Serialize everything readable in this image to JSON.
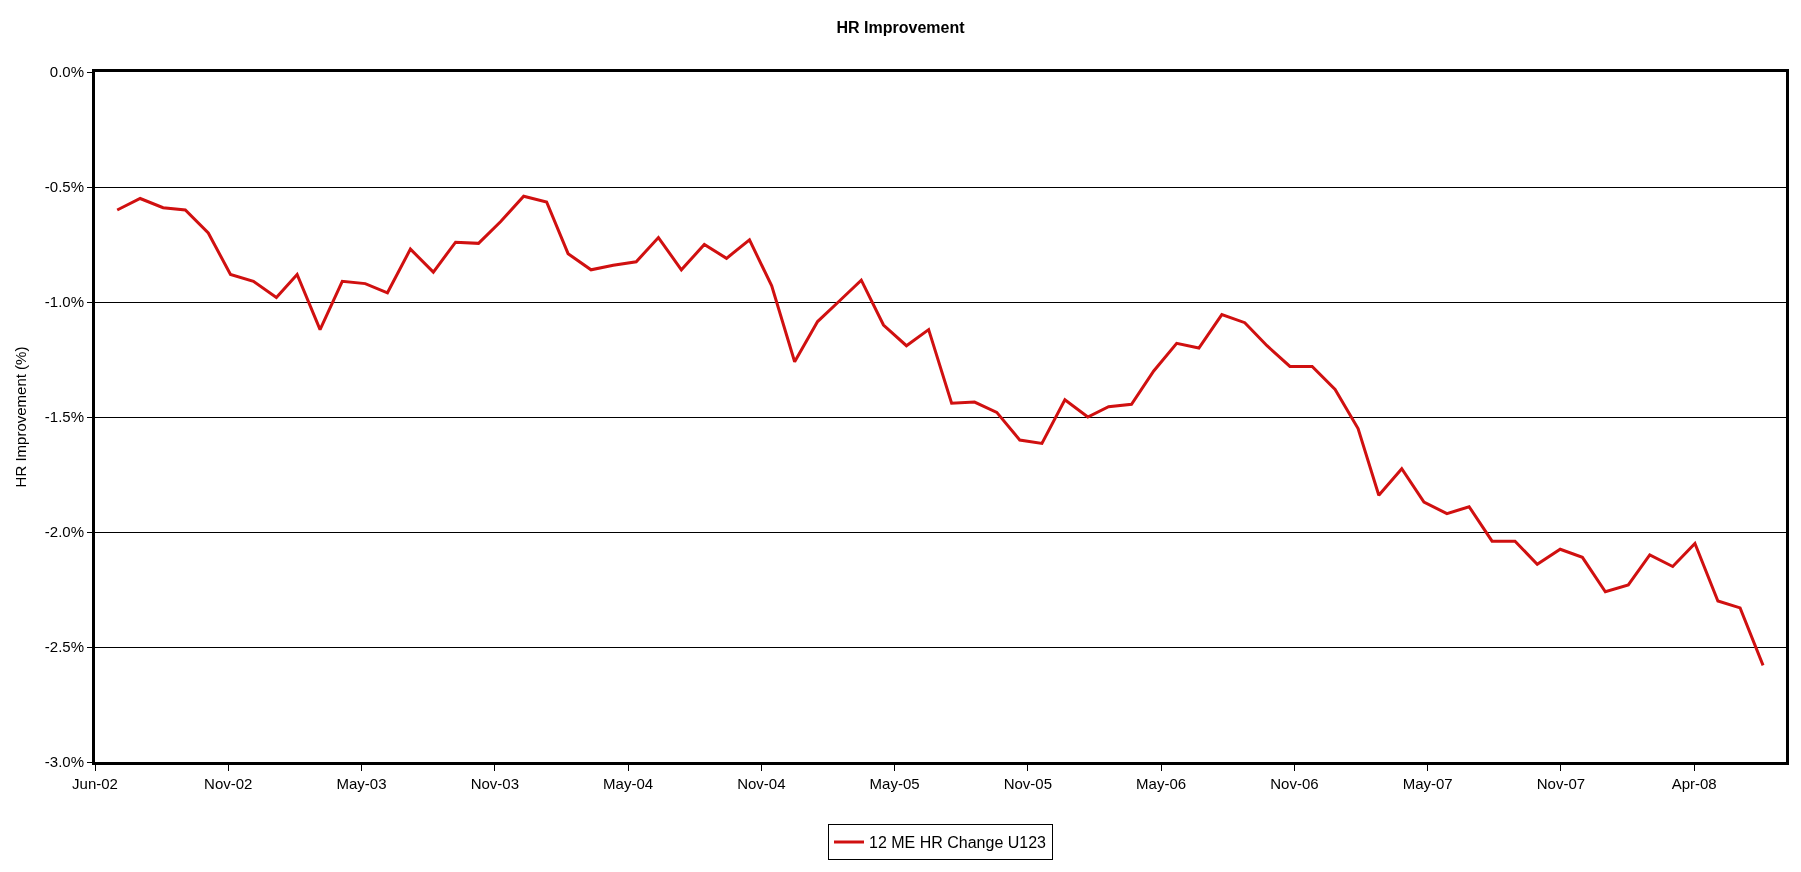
{
  "chart_data": {
    "type": "line",
    "title": "HR Improvement",
    "ylabel": "HR Improvement (%)",
    "x": [
      "2002-07",
      "2002-08",
      "2002-09",
      "2002-10",
      "2002-11",
      "2002-12",
      "2003-01",
      "2003-02",
      "2003-03",
      "2003-04",
      "2003-05",
      "2003-06",
      "2003-07",
      "2003-08",
      "2003-09",
      "2003-10",
      "2003-11",
      "2003-12",
      "2004-01",
      "2004-02",
      "2004-03",
      "2004-04",
      "2004-05",
      "2004-06",
      "2004-07",
      "2004-08",
      "2004-09",
      "2004-10",
      "2004-11",
      "2004-12",
      "2005-01",
      "2005-02",
      "2005-03",
      "2005-04",
      "2005-05",
      "2005-06",
      "2005-07",
      "2005-08",
      "2005-09",
      "2005-10",
      "2005-11",
      "2005-12",
      "2006-01",
      "2006-02",
      "2006-03",
      "2006-04",
      "2006-05",
      "2006-06",
      "2006-07",
      "2006-08",
      "2006-09",
      "2006-10",
      "2006-11",
      "2006-12",
      "2007-01",
      "2007-02",
      "2007-03",
      "2007-04",
      "2007-05",
      "2007-06",
      "2007-07",
      "2007-08",
      "2007-09",
      "2007-10",
      "2007-11",
      "2007-12",
      "2008-01",
      "2008-02",
      "2008-03",
      "2008-04",
      "2008-05",
      "2008-06",
      "2008-07",
      "2008-08"
    ],
    "series": [
      {
        "name": "12 ME HR Change U123",
        "color": "#d01010",
        "values": [
          -0.6,
          -0.55,
          -0.59,
          -0.6,
          -0.7,
          -0.88,
          -0.91,
          -0.98,
          -0.88,
          -1.12,
          -0.91,
          -0.92,
          -0.96,
          -0.77,
          -0.87,
          -0.74,
          -0.745,
          -0.65,
          -0.54,
          -0.565,
          -0.79,
          -0.86,
          -0.84,
          -0.825,
          -0.72,
          -0.86,
          -0.75,
          -0.81,
          -0.73,
          -0.93,
          -1.26,
          -1.085,
          -1.0,
          -0.905,
          -1.1,
          -1.19,
          -1.12,
          -1.44,
          -1.435,
          -1.48,
          -1.6,
          -1.615,
          -1.425,
          -1.5,
          -1.455,
          -1.445,
          -1.3,
          -1.18,
          -1.2,
          -1.055,
          -1.09,
          -1.19,
          -1.28,
          -1.28,
          -1.38,
          -1.55,
          -1.84,
          -1.725,
          -1.87,
          -1.92,
          -1.89,
          -2.04,
          -2.04,
          -2.14,
          -2.075,
          -2.11,
          -2.26,
          -2.23,
          -2.1,
          -2.15,
          -2.05,
          -2.3,
          -2.33,
          -2.58
        ]
      }
    ],
    "xlim": [
      "2002-06-01",
      "2008-09-01"
    ],
    "xticks": [
      {
        "value": "2002-06-01",
        "label": "Jun-02"
      },
      {
        "value": "2002-11-28",
        "label": "Nov-02"
      },
      {
        "value": "2003-05-27",
        "label": "May-03"
      },
      {
        "value": "2003-11-23",
        "label": "Nov-03"
      },
      {
        "value": "2004-05-21",
        "label": "May-04"
      },
      {
        "value": "2004-11-17",
        "label": "Nov-04"
      },
      {
        "value": "2005-05-16",
        "label": "May-05"
      },
      {
        "value": "2005-11-12",
        "label": "Nov-05"
      },
      {
        "value": "2006-05-11",
        "label": "May-06"
      },
      {
        "value": "2006-11-07",
        "label": "Nov-06"
      },
      {
        "value": "2007-05-06",
        "label": "May-07"
      },
      {
        "value": "2007-11-02",
        "label": "Nov-07"
      },
      {
        "value": "2008-04-30",
        "label": "Apr-08"
      }
    ],
    "ylim": [
      -3.0,
      0.0
    ],
    "yticks": [
      {
        "value": -3.0,
        "label": "-3.0%"
      },
      {
        "value": -2.5,
        "label": "-2.5%"
      },
      {
        "value": -2.0,
        "label": "-2.0%"
      },
      {
        "value": -1.5,
        "label": "-1.5%"
      },
      {
        "value": -1.0,
        "label": "-1.0%"
      },
      {
        "value": -0.5,
        "label": "-0.5%"
      },
      {
        "value": 0.0,
        "label": "0.0%"
      }
    ],
    "grid": "y",
    "legend": "bottom",
    "marker": "none",
    "line_style": "solid"
  }
}
